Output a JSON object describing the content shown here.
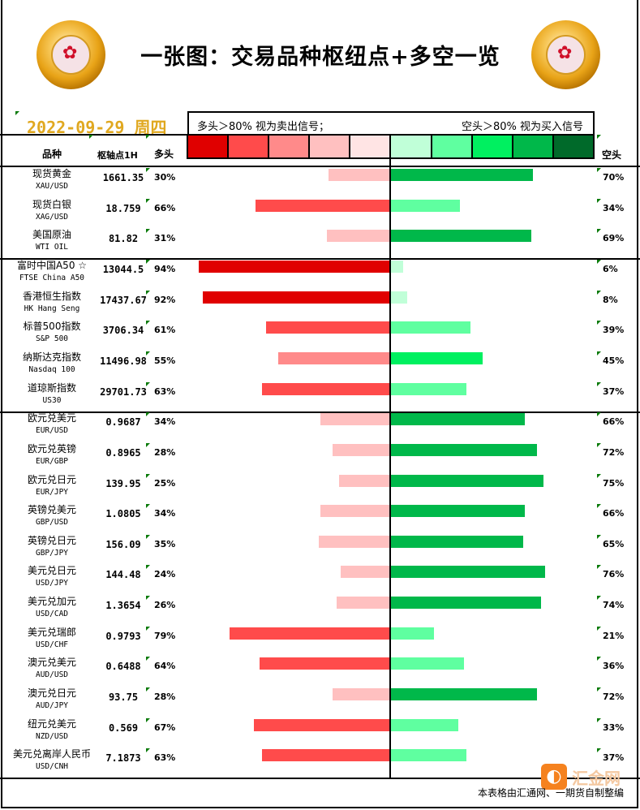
{
  "title": "一张图：交易品种枢纽点+多空一览",
  "date": "2022-09-29 周四",
  "legend": {
    "bull_note": "多头＞80% 视为卖出信号；",
    "bear_note": "空头＞80% 视为买入信号",
    "bull_colors": [
      "#e00000",
      "#ff4b4b",
      "#ff8a8a",
      "#ffc0c0",
      "#ffe4e4"
    ],
    "bear_colors": [
      "#c0ffd8",
      "#5fffa0",
      "#00f060",
      "#00b84a",
      "#006a2a"
    ]
  },
  "headers": {
    "instrument": "品种",
    "pivot": "枢轴点1H",
    "bull": "多头",
    "bear": "空头"
  },
  "rows": [
    {
      "cn": "现货黄金",
      "en": "XAU/USD",
      "pivot": "1661.35",
      "bull": 30,
      "bear": 70,
      "bull_label": "30%",
      "bear_label": "70%"
    },
    {
      "cn": "现货白银",
      "en": "XAG/USD",
      "pivot": "18.759",
      "bull": 66,
      "bear": 34,
      "bull_label": "66%",
      "bear_label": "34%"
    },
    {
      "cn": "美国原油",
      "en": "WTI OIL",
      "pivot": "81.82",
      "bull": 31,
      "bear": 69,
      "bull_label": "31%",
      "bear_label": "69%"
    },
    {
      "cn": "富时中国A50 ☆",
      "en": "FTSE China A50",
      "pivot": "13044.5",
      "bull": 94,
      "bear": 6,
      "bull_label": "94%",
      "bear_label": "6%"
    },
    {
      "cn": "香港恒生指数",
      "en": "HK Hang Seng",
      "pivot": "17437.67",
      "bull": 92,
      "bear": 8,
      "bull_label": "92%",
      "bear_label": "8%"
    },
    {
      "cn": "标普500指数",
      "en": "S&P 500",
      "pivot": "3706.34",
      "bull": 61,
      "bear": 39,
      "bull_label": "61%",
      "bear_label": "39%"
    },
    {
      "cn": "纳斯达克指数",
      "en": "Nasdaq 100",
      "pivot": "11496.98",
      "bull": 55,
      "bear": 45,
      "bull_label": "55%",
      "bear_label": "45%"
    },
    {
      "cn": "道琼斯指数",
      "en": "US30",
      "pivot": "29701.73",
      "bull": 63,
      "bear": 37,
      "bull_label": "63%",
      "bear_label": "37%"
    },
    {
      "cn": "欧元兑美元",
      "en": "EUR/USD",
      "pivot": "0.9687",
      "bull": 34,
      "bear": 66,
      "bull_label": "34%",
      "bear_label": "66%"
    },
    {
      "cn": "欧元兑英镑",
      "en": "EUR/GBP",
      "pivot": "0.8965",
      "bull": 28,
      "bear": 72,
      "bull_label": "28%",
      "bear_label": "72%"
    },
    {
      "cn": "欧元兑日元",
      "en": "EUR/JPY",
      "pivot": "139.95",
      "bull": 25,
      "bear": 75,
      "bull_label": "25%",
      "bear_label": "75%"
    },
    {
      "cn": "英镑兑美元",
      "en": "GBP/USD",
      "pivot": "1.0805",
      "bull": 34,
      "bear": 66,
      "bull_label": "34%",
      "bear_label": "66%"
    },
    {
      "cn": "英镑兑日元",
      "en": "GBP/JPY",
      "pivot": "156.09",
      "bull": 35,
      "bear": 65,
      "bull_label": "35%",
      "bear_label": "65%"
    },
    {
      "cn": "美元兑日元",
      "en": "USD/JPY",
      "pivot": "144.48",
      "bull": 24,
      "bear": 76,
      "bull_label": "24%",
      "bear_label": "76%"
    },
    {
      "cn": "美元兑加元",
      "en": "USD/CAD",
      "pivot": "1.3654",
      "bull": 26,
      "bear": 74,
      "bull_label": "26%",
      "bear_label": "74%"
    },
    {
      "cn": "美元兑瑞郎",
      "en": "USD/CHF",
      "pivot": "0.9793",
      "bull": 79,
      "bear": 21,
      "bull_label": "79%",
      "bear_label": "21%"
    },
    {
      "cn": "澳元兑美元",
      "en": "AUD/USD",
      "pivot": "0.6488",
      "bull": 64,
      "bear": 36,
      "bull_label": "64%",
      "bear_label": "36%"
    },
    {
      "cn": "澳元兑日元",
      "en": "AUD/JPY",
      "pivot": "93.75",
      "bull": 28,
      "bear": 72,
      "bull_label": "28%",
      "bear_label": "72%"
    },
    {
      "cn": "纽元兑美元",
      "en": "NZD/USD",
      "pivot": "0.569",
      "bull": 67,
      "bear": 33,
      "bull_label": "67%",
      "bear_label": "33%"
    },
    {
      "cn": "美元兑离岸人民币",
      "en": "USD/CNH",
      "pivot": "7.1873",
      "bull": 63,
      "bear": 37,
      "bull_label": "63%",
      "bear_label": "37%"
    }
  ],
  "footer": "本表格由汇通网、一期货自制整编",
  "watermark": "汇金网"
}
